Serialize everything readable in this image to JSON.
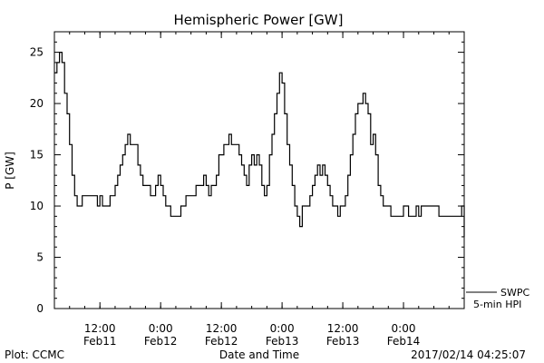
{
  "chart_data": {
    "type": "line",
    "title": "Hemispheric Power [GW]",
    "ylabel": "P [GW]",
    "xlabel": "Date and Time",
    "ylim": [
      0,
      27
    ],
    "yticks": [
      0,
      5,
      10,
      15,
      20,
      25
    ],
    "xlim_hours": [
      0,
      81
    ],
    "xticks": [
      {
        "h": 9,
        "time": "12:00",
        "date": "Feb11"
      },
      {
        "h": 21,
        "time": "0:00",
        "date": "Feb12"
      },
      {
        "h": 33,
        "time": "12:00",
        "date": "Feb12"
      },
      {
        "h": 45,
        "time": "0:00",
        "date": "Feb13"
      },
      {
        "h": 57,
        "time": "12:00",
        "date": "Feb13"
      },
      {
        "h": 69,
        "time": "0:00",
        "date": "Feb14"
      }
    ],
    "grid": false,
    "legend": {
      "line": "SWPC",
      "label": "5-min HPI"
    },
    "footer": {
      "left": "Plot: CCMC",
      "right": "2017/02/14 04:25:07"
    },
    "series": [
      {
        "name": "SWPC",
        "color": "#000000",
        "points": [
          [
            0,
            23
          ],
          [
            0.5,
            24
          ],
          [
            1,
            25
          ],
          [
            1.5,
            24
          ],
          [
            2,
            21
          ],
          [
            2.5,
            19
          ],
          [
            3,
            16
          ],
          [
            3.5,
            13
          ],
          [
            4,
            11
          ],
          [
            4.5,
            10
          ],
          [
            5,
            10
          ],
          [
            5.5,
            11
          ],
          [
            6,
            11
          ],
          [
            7,
            11
          ],
          [
            8,
            11
          ],
          [
            8.5,
            10
          ],
          [
            9,
            11
          ],
          [
            9.5,
            10
          ],
          [
            10,
            10
          ],
          [
            11,
            11
          ],
          [
            12,
            12
          ],
          [
            12.5,
            13
          ],
          [
            13,
            14
          ],
          [
            13.5,
            15
          ],
          [
            14,
            16
          ],
          [
            14.5,
            17
          ],
          [
            15,
            16
          ],
          [
            15.5,
            16
          ],
          [
            16,
            16
          ],
          [
            16.5,
            14
          ],
          [
            17,
            13
          ],
          [
            17.5,
            12
          ],
          [
            18,
            12
          ],
          [
            18.5,
            12
          ],
          [
            19,
            11
          ],
          [
            19.5,
            11
          ],
          [
            20,
            12
          ],
          [
            20.5,
            13
          ],
          [
            21,
            12
          ],
          [
            21.5,
            11
          ],
          [
            22,
            10
          ],
          [
            22.5,
            10
          ],
          [
            23,
            9
          ],
          [
            23.5,
            9
          ],
          [
            24,
            9
          ],
          [
            25,
            10
          ],
          [
            26,
            11
          ],
          [
            27,
            11
          ],
          [
            28,
            12
          ],
          [
            28.5,
            12
          ],
          [
            29,
            12
          ],
          [
            29.5,
            13
          ],
          [
            30,
            12
          ],
          [
            30.5,
            11
          ],
          [
            31,
            12
          ],
          [
            31.5,
            12
          ],
          [
            32,
            13
          ],
          [
            32.5,
            15
          ],
          [
            33,
            15
          ],
          [
            33.5,
            16
          ],
          [
            34,
            16
          ],
          [
            34.5,
            17
          ],
          [
            35,
            16
          ],
          [
            35.5,
            16
          ],
          [
            36,
            16
          ],
          [
            36.5,
            15
          ],
          [
            37,
            14
          ],
          [
            37.5,
            13
          ],
          [
            38,
            12
          ],
          [
            38.5,
            14
          ],
          [
            39,
            15
          ],
          [
            39.5,
            14
          ],
          [
            40,
            15
          ],
          [
            40.5,
            14
          ],
          [
            41,
            12
          ],
          [
            41.5,
            11
          ],
          [
            42,
            12
          ],
          [
            42.5,
            15
          ],
          [
            43,
            17
          ],
          [
            43.5,
            19
          ],
          [
            44,
            21
          ],
          [
            44.5,
            23
          ],
          [
            45,
            22
          ],
          [
            45.5,
            19
          ],
          [
            46,
            16
          ],
          [
            46.5,
            14
          ],
          [
            47,
            12
          ],
          [
            47.5,
            10
          ],
          [
            48,
            9
          ],
          [
            48.5,
            8
          ],
          [
            49,
            10
          ],
          [
            49.5,
            10
          ],
          [
            50,
            10
          ],
          [
            50.5,
            11
          ],
          [
            51,
            12
          ],
          [
            51.5,
            13
          ],
          [
            52,
            14
          ],
          [
            52.5,
            13
          ],
          [
            53,
            14
          ],
          [
            53.5,
            13
          ],
          [
            54,
            12
          ],
          [
            54.5,
            11
          ],
          [
            55,
            10
          ],
          [
            55.5,
            10
          ],
          [
            56,
            9
          ],
          [
            56.5,
            10
          ],
          [
            57,
            10
          ],
          [
            57.5,
            11
          ],
          [
            58,
            13
          ],
          [
            58.5,
            15
          ],
          [
            59,
            17
          ],
          [
            59.5,
            19
          ],
          [
            60,
            20
          ],
          [
            60.5,
            20
          ],
          [
            61,
            21
          ],
          [
            61.5,
            20
          ],
          [
            62,
            19
          ],
          [
            62.5,
            16
          ],
          [
            63,
            17
          ],
          [
            63.5,
            15
          ],
          [
            64,
            12
          ],
          [
            64.5,
            11
          ],
          [
            65,
            10
          ],
          [
            65.5,
            10
          ],
          [
            66,
            10
          ],
          [
            66.5,
            9
          ],
          [
            67,
            9
          ],
          [
            67.5,
            9
          ],
          [
            68,
            9
          ],
          [
            68.5,
            9
          ],
          [
            69,
            10
          ],
          [
            69.5,
            10
          ],
          [
            70,
            9
          ],
          [
            70.5,
            9
          ],
          [
            71,
            9
          ],
          [
            71.5,
            10
          ],
          [
            72,
            9
          ],
          [
            72.5,
            10
          ],
          [
            73,
            10
          ],
          [
            74,
            10
          ],
          [
            75,
            10
          ],
          [
            75.5,
            10
          ],
          [
            76,
            9
          ],
          [
            76.5,
            9
          ],
          [
            77,
            9
          ],
          [
            78,
            9
          ],
          [
            79,
            9
          ],
          [
            80,
            9
          ],
          [
            80.5,
            10
          ],
          [
            81,
            7
          ]
        ]
      }
    ]
  }
}
